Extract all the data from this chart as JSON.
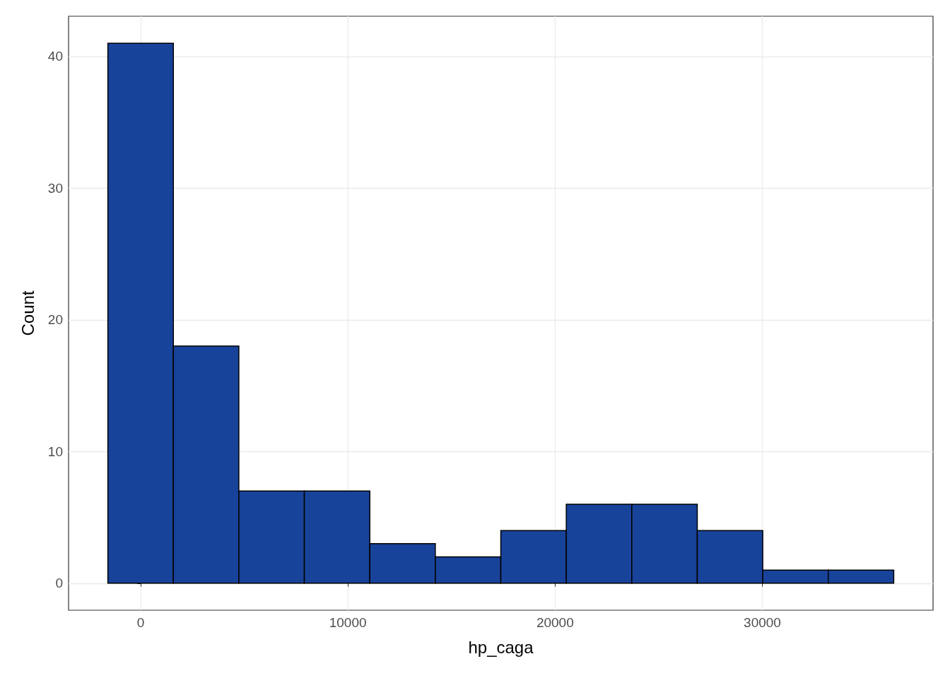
{
  "chart_data": {
    "type": "histogram",
    "xlabel": "hp_caga",
    "ylabel": "Count",
    "bins": [
      -1580,
      1580,
      4740,
      7900,
      11060,
      14220,
      17380,
      20540,
      23700,
      26860,
      30020,
      33180,
      36340
    ],
    "values": [
      41,
      18,
      7,
      7,
      3,
      2,
      4,
      6,
      6,
      4,
      1,
      1
    ],
    "color": "#18439a",
    "xlim": [
      -3476,
      38236
    ],
    "xticks": [
      0,
      10000,
      20000,
      30000
    ],
    "ylim": [
      -2.05,
      43.05
    ],
    "yticks": [
      0,
      10,
      20,
      30,
      40
    ],
    "grid": true
  }
}
